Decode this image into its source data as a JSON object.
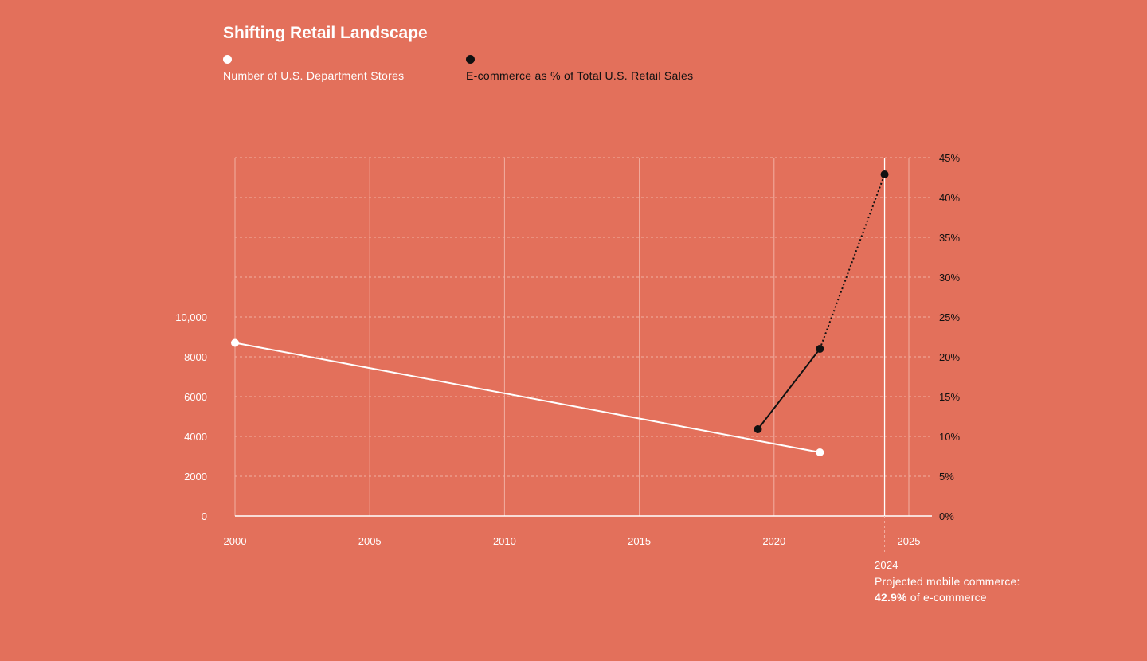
{
  "chart_data": {
    "type": "line",
    "title": "Shifting Retail Landscape",
    "x_ticks": [
      "2000",
      "2005",
      "2010",
      "2015",
      "2020",
      "2025"
    ],
    "xlim": [
      2000,
      2025
    ],
    "y_left": {
      "ylim": [
        0,
        10000
      ],
      "ticks": [
        "0",
        "2000",
        "4000",
        "6000",
        "8000",
        "10,000"
      ]
    },
    "y_right": {
      "ylim": [
        0,
        45
      ],
      "ticks": [
        "0%",
        "5%",
        "10%",
        "15%",
        "20%",
        "25%",
        "30%",
        "35%",
        "40%",
        "45%"
      ]
    },
    "grid": true,
    "series": [
      {
        "name": "Number of U.S. Department Stores",
        "axis": "left",
        "color": "#ffffff",
        "style": "solid",
        "points": [
          {
            "x": 2000,
            "y": 8700
          },
          {
            "x": 2021.7,
            "y": 3200
          }
        ]
      },
      {
        "name": "E-commerce as % of Total U.S. Retail Sales",
        "axis": "right",
        "color": "#111111",
        "segments": [
          {
            "style": "solid",
            "points": [
              {
                "x": 2019.4,
                "y": 10.9
              },
              {
                "x": 2021.7,
                "y": 21.0
              }
            ]
          },
          {
            "style": "dotted",
            "points": [
              {
                "x": 2021.7,
                "y": 21.0
              },
              {
                "x": 2024.1,
                "y": 42.9
              }
            ]
          }
        ]
      }
    ],
    "marker": {
      "x": 2024.1,
      "label": "2024"
    },
    "annotation": {
      "year": "2024",
      "line1": "Projected mobile commerce:",
      "value": "42.9%",
      "line2_suffix": " of e-commerce"
    }
  },
  "colors": {
    "background": "#E3705B",
    "grid": "#F2AFA2",
    "light": "#ffffff",
    "dark": "#111111"
  }
}
